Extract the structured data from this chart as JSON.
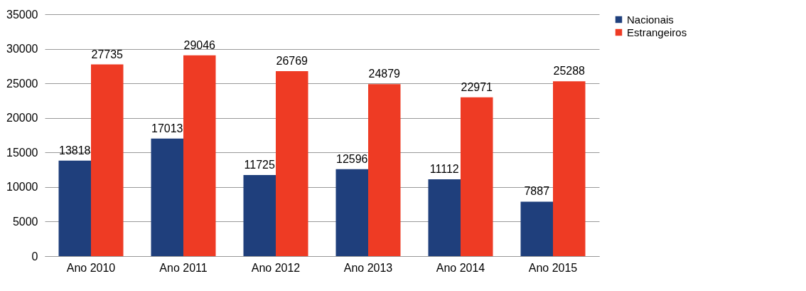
{
  "chart_data": {
    "type": "bar",
    "categories": [
      "Ano 2010",
      "Ano 2011",
      "Ano 2012",
      "Ano 2013",
      "Ano 2014",
      "Ano 2015"
    ],
    "series": [
      {
        "name": "Nacionais",
        "color": "#1f3f7c",
        "values": [
          13818,
          17013,
          11725,
          12596,
          11112,
          7887
        ]
      },
      {
        "name": "Estrangeiros",
        "color": "#ee3b24",
        "values": [
          27735,
          29046,
          26769,
          24879,
          22971,
          25288
        ]
      }
    ],
    "ylim": [
      0,
      35000
    ],
    "yticks": [
      0,
      5000,
      10000,
      15000,
      20000,
      25000,
      30000,
      35000
    ],
    "grid": "y",
    "legend": "right",
    "data_labels": true
  }
}
